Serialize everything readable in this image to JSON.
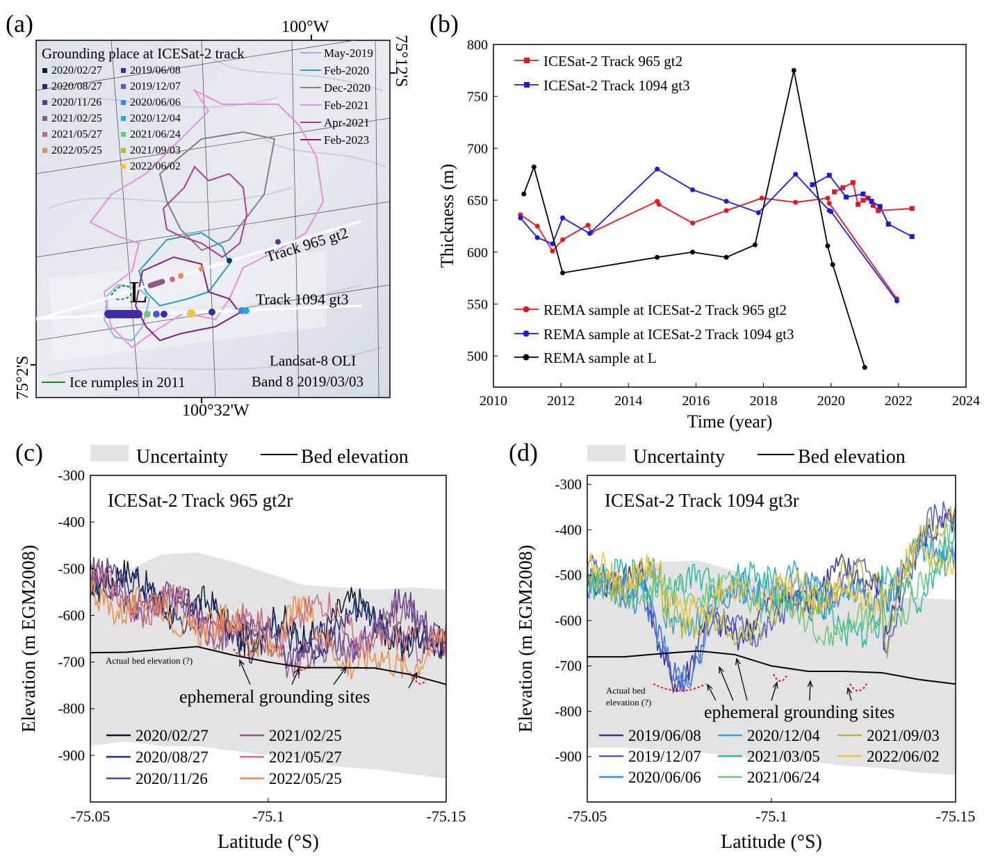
{
  "panel_labels": {
    "a": "(a)",
    "b": "(b)",
    "c": "(c)",
    "d": "(d)"
  },
  "map": {
    "lon_top": "100°W",
    "lat_right": "75°12'S",
    "lat_left": "75°2'S",
    "lon_bottom": "100°32'W",
    "legend_title": "Grounding  place at ICESat-2 track",
    "dates_col1": [
      "2020/02/27",
      "2020/08/27",
      "2020/11/26",
      "2021/02/25",
      "2021/05/27",
      "2022/05/25"
    ],
    "dates_col2": [
      "2019/06/08",
      "2019/12/07",
      "2020/06/06",
      "2020/12/04",
      "2021/06/24",
      "2021/09/03",
      "2022/06/02"
    ],
    "col1_colors": [
      "#0c1a2a",
      "#1f2f7a",
      "#5a3e8c",
      "#8c5a8a",
      "#c96a80",
      "#f08a4a"
    ],
    "col2_colors": [
      "#3b2fa0",
      "#4a5ad8",
      "#3a86e0",
      "#2aa6d8",
      "#6cc878",
      "#b4b83a",
      "#f2c43a"
    ],
    "line_legend": [
      "May-2019",
      "Feb-2020",
      "Dec-2020",
      "Feb-2021",
      "Apr-2021",
      "Feb-2023"
    ],
    "line_colors": [
      "#8ab6ea",
      "#2a9ac0",
      "#808080",
      "#f08ad8",
      "#b03a9a",
      "#8a1a80"
    ],
    "track1": "Track 965 gt2",
    "track2": "Track 1094 gt3",
    "point_L": "L",
    "rumples": "Ice rumples in 2011",
    "imagery1": "Landsat-8 OLI",
    "imagery2": "Band 8 2019/03/03"
  },
  "chart_data": [
    {
      "type": "line",
      "panel": "b",
      "xlabel": "Time (year)",
      "ylabel": "Thickness (m)",
      "xlim": [
        2010,
        2024
      ],
      "ylim": [
        470,
        800
      ],
      "xticks": [
        2010,
        2012,
        2014,
        2016,
        2018,
        2020,
        2022,
        2024
      ],
      "yticks": [
        500,
        550,
        600,
        650,
        700,
        750,
        800
      ],
      "series": [
        {
          "name": "ICESat-2 Track 965 gt2",
          "color": "#e8161a",
          "marker": "square",
          "x": [
            2020.1,
            2020.35,
            2020.65,
            2020.8,
            2020.95,
            2021.1,
            2021.25,
            2021.4,
            2022.4
          ],
          "y": [
            658,
            662,
            667,
            646,
            650,
            652,
            645,
            640,
            642
          ]
        },
        {
          "name": "ICESat-2 Track 1094 gt3",
          "color": "#1a1ae8",
          "marker": "square",
          "x": [
            2019.45,
            2019.95,
            2020.45,
            2020.95,
            2021.2,
            2021.45,
            2021.7,
            2022.4
          ],
          "y": [
            665,
            674,
            653,
            656,
            649,
            644,
            627,
            615
          ]
        },
        {
          "name": "REMA sample at ICESat-2 Track 965 gt2",
          "color": "#e8161a",
          "marker": "circle",
          "x": [
            2010.8,
            2011.3,
            2011.75,
            2012.05,
            2012.8,
            2012.9,
            2014.85,
            2014.9,
            2015.9,
            2016.9,
            2017.95,
            2018.95,
            2019.9,
            2019.95,
            2021.95
          ],
          "y": [
            636,
            625,
            601,
            612,
            626,
            619,
            649,
            646,
            628,
            640,
            652,
            648,
            652,
            647,
            555
          ]
        },
        {
          "name": "REMA sample at ICESat-2 Track 1094 gt3",
          "color": "#1a1ae8",
          "marker": "circle",
          "x": [
            2010.8,
            2011.3,
            2011.75,
            2012.05,
            2012.85,
            2014.85,
            2015.9,
            2016.9,
            2017.85,
            2018.95,
            2019.95,
            2020.0,
            2021.95
          ],
          "y": [
            633,
            614,
            608,
            633,
            618,
            680,
            660,
            649,
            638,
            675,
            640,
            639,
            553
          ]
        },
        {
          "name": "REMA sample at L",
          "color": "#000000",
          "marker": "circle",
          "x": [
            2010.9,
            2011.2,
            2012.05,
            2014.85,
            2015.9,
            2016.9,
            2017.75,
            2018.9,
            2019.9,
            2020.05,
            2021.0
          ],
          "y": [
            656,
            682,
            580,
            595,
            600,
            595,
            607,
            775,
            606,
            588,
            489
          ]
        }
      ]
    },
    {
      "type": "line",
      "panel": "c",
      "title": "ICESat-2 Track 965 gt2r",
      "xlabel": "Latitude (°S)",
      "ylabel": "Elevation (m EGM2008)",
      "xlim": [
        -75.05,
        -75.15
      ],
      "ylim": [
        -1000,
        -300
      ],
      "xticks": [
        -75.05,
        -75.1,
        -75.15
      ],
      "xticklabels": [
        "-75.05",
        "-75.1",
        "-75.15"
      ],
      "yticks": [
        -300,
        -400,
        -500,
        -600,
        -700,
        -800,
        -900
      ],
      "legend_top": [
        "Uncertainty",
        "Bed elevation"
      ],
      "bed": {
        "x": [
          -75.05,
          -75.06,
          -75.07,
          -75.08,
          -75.09,
          -75.1,
          -75.11,
          -75.12,
          -75.13,
          -75.14,
          -75.15
        ],
        "y": [
          -680,
          -679,
          -673,
          -667,
          -685,
          -700,
          -712,
          -712,
          -713,
          -727,
          -748
        ]
      },
      "uncertainty": {
        "upper": [
          -505,
          -505,
          -470,
          -465,
          -485,
          -510,
          -535,
          -540,
          -545,
          -540,
          -545
        ],
        "lower": [
          -880,
          -870,
          -880,
          -880,
          -890,
          -900,
          -910,
          -925,
          -930,
          -940,
          -950
        ]
      },
      "series": [
        {
          "name": "2020/02/27",
          "color": "#0c1a2a"
        },
        {
          "name": "2020/08/27",
          "color": "#1f2f7a"
        },
        {
          "name": "2020/11/26",
          "color": "#5a3e8c"
        },
        {
          "name": "2021/02/25",
          "color": "#8c5a8a"
        },
        {
          "name": "2021/05/27",
          "color": "#c96a80"
        },
        {
          "name": "2022/05/25",
          "color": "#f08a4a"
        }
      ],
      "annotations": [
        "Actual bed elevation (?)",
        "ephemeral grounding sites"
      ]
    },
    {
      "type": "line",
      "panel": "d",
      "title": "ICESat-2 Track 1094 gt3r",
      "xlabel": "Latitude (°S)",
      "ylabel": "Elevation (m EGM2008)",
      "xlim": [
        -75.05,
        -75.15
      ],
      "ylim": [
        -1000,
        -280
      ],
      "xticks": [
        -75.05,
        -75.1,
        -75.15
      ],
      "xticklabels": [
        "-75.05",
        "-75.1",
        "-75.15"
      ],
      "yticks": [
        -300,
        -400,
        -500,
        -600,
        -700,
        -800,
        -900
      ],
      "legend_top": [
        "Uncertainty",
        "Bed elevation"
      ],
      "bed": {
        "x": [
          -75.05,
          -75.06,
          -75.07,
          -75.08,
          -75.09,
          -75.1,
          -75.11,
          -75.12,
          -75.13,
          -75.14,
          -75.15
        ],
        "y": [
          -680,
          -680,
          -673,
          -667,
          -675,
          -700,
          -712,
          -712,
          -715,
          -730,
          -740
        ]
      },
      "uncertainty": {
        "upper": [
          -505,
          -500,
          -470,
          -468,
          -490,
          -515,
          -540,
          -545,
          -550,
          -550,
          -555
        ],
        "lower": [
          -880,
          -880,
          -885,
          -890,
          -900,
          -905,
          -910,
          -920,
          -925,
          -935,
          -940
        ]
      },
      "series": [
        {
          "name": "2019/06/08",
          "color": "#3b2fa0"
        },
        {
          "name": "2019/12/07",
          "color": "#4a5ad8"
        },
        {
          "name": "2020/06/06",
          "color": "#3a86e0"
        },
        {
          "name": "2020/12/04",
          "color": "#2aa6d8"
        },
        {
          "name": "2021/03/05",
          "color": "#28b8a8"
        },
        {
          "name": "2021/06/24",
          "color": "#6cc878"
        },
        {
          "name": "2021/09/03",
          "color": "#b4b83a"
        },
        {
          "name": "2022/06/02",
          "color": "#f2c43a"
        }
      ],
      "annotations": [
        "Actual bed elevation (?)",
        "ephemeral grounding sites"
      ]
    }
  ]
}
